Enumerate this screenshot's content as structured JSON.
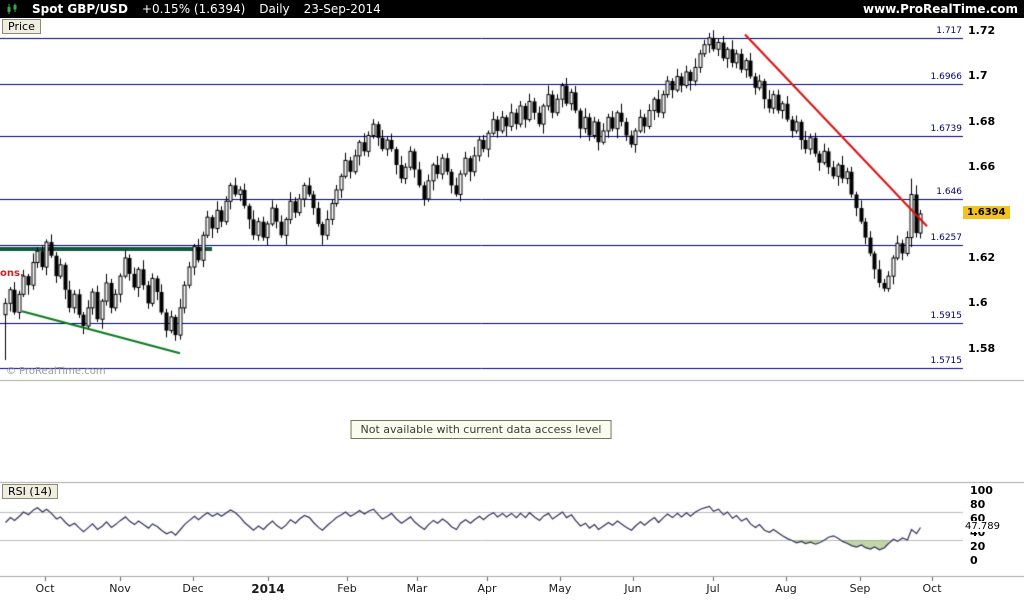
{
  "header": {
    "symbol": "Spot GBP/USD",
    "change": "+0.15% (1.6394)",
    "timeframe": "Daily",
    "date": "23-Sep-2014",
    "website": "www.ProRealTime.com"
  },
  "price_panel": {
    "tab_label": "Price",
    "watermark": "© ProRealTime.com",
    "left_label": "ons."
  },
  "indicator_panel": {
    "message": "Not available with current data access level"
  },
  "rsi_panel": {
    "label": "RSI (14)"
  },
  "price_axis": {
    "ticks": [
      {
        "label": "1.72",
        "value": 1.72
      },
      {
        "label": "1.7",
        "value": 1.7
      },
      {
        "label": "1.68",
        "value": 1.68
      },
      {
        "label": "1.66",
        "value": 1.66
      },
      {
        "label": "1.62",
        "value": 1.62
      },
      {
        "label": "1.6",
        "value": 1.6
      },
      {
        "label": "1.58",
        "value": 1.58
      }
    ],
    "level_labels": [
      {
        "label": "1.717",
        "value": 1.717
      },
      {
        "label": "1.6966",
        "value": 1.6966
      },
      {
        "label": "1.6739",
        "value": 1.6739
      },
      {
        "label": "1.646",
        "value": 1.646
      },
      {
        "label": "1.6257",
        "value": 1.6257
      },
      {
        "label": "1.5915",
        "value": 1.5915
      },
      {
        "label": "1.5715",
        "value": 1.5715
      }
    ],
    "badge": {
      "label": "1.6394",
      "value": 1.6394
    }
  },
  "rsi_axis": {
    "ticks": [
      100,
      80,
      60,
      40,
      20,
      0
    ],
    "value_label": {
      "label": "47.789",
      "value": 47.789
    }
  },
  "x_axis": {
    "labels": [
      {
        "text": "Oct",
        "x": 45,
        "bold": false
      },
      {
        "text": "Nov",
        "x": 120,
        "bold": false
      },
      {
        "text": "Dec",
        "x": 193,
        "bold": false
      },
      {
        "text": "2014",
        "x": 268,
        "bold": true
      },
      {
        "text": "Feb",
        "x": 347,
        "bold": false
      },
      {
        "text": "Mar",
        "x": 417,
        "bold": false
      },
      {
        "text": "Apr",
        "x": 487,
        "bold": false
      },
      {
        "text": "May",
        "x": 560,
        "bold": false
      },
      {
        "text": "Jun",
        "x": 633,
        "bold": false
      },
      {
        "text": "Jul",
        "x": 713,
        "bold": false
      },
      {
        "text": "Aug",
        "x": 786,
        "bold": false
      },
      {
        "text": "Sep",
        "x": 860,
        "bold": false
      },
      {
        "text": "Oct",
        "x": 932,
        "bold": false
      }
    ]
  },
  "colors": {
    "level_line": "#00007f",
    "candle": "#000000",
    "trend_red": "#dd1111",
    "trend_green": "#0a7a1e",
    "support_segment": "#14573f",
    "rsi_line": "#30305a",
    "rsi_fill": "rgba(150,185,110,0.6)",
    "separator": "#a8a8a8",
    "ref_line": "#bbbbbb",
    "badge_bg": "#f2c31c",
    "tick_mark": "#666666"
  },
  "chart_data": [
    {
      "type": "candlestick",
      "name": "Spot GBP/USD",
      "title": "Spot GBP/USD — Daily — 23-Sep-2014",
      "ylim": [
        1.5671,
        1.7249
      ],
      "x_months": [
        "Oct",
        "Nov",
        "Dec",
        "2014",
        "Feb",
        "Mar",
        "Apr",
        "May",
        "Jun",
        "Jul",
        "Aug",
        "Sep",
        "Oct"
      ],
      "open_rule": "previous_close",
      "first_open": 1.595,
      "closes": [
        1.6,
        1.606,
        1.596,
        1.604,
        1.612,
        1.608,
        1.618,
        1.623,
        1.616,
        1.627,
        1.621,
        1.612,
        1.617,
        1.606,
        1.598,
        1.604,
        1.595,
        1.59,
        1.598,
        1.605,
        1.593,
        1.601,
        1.609,
        1.598,
        1.604,
        1.612,
        1.62,
        1.613,
        1.607,
        1.615,
        1.608,
        1.6,
        1.611,
        1.605,
        1.596,
        1.588,
        1.594,
        1.586,
        1.598,
        1.608,
        1.616,
        1.625,
        1.619,
        1.63,
        1.638,
        1.633,
        1.641,
        1.636,
        1.645,
        1.652,
        1.648,
        1.65,
        1.643,
        1.637,
        1.63,
        1.636,
        1.629,
        1.635,
        1.642,
        1.636,
        1.63,
        1.637,
        1.645,
        1.64,
        1.646,
        1.652,
        1.648,
        1.642,
        1.635,
        1.63,
        1.637,
        1.644,
        1.65,
        1.656,
        1.663,
        1.658,
        1.665,
        1.671,
        1.667,
        1.674,
        1.679,
        1.673,
        1.668,
        1.672,
        1.668,
        1.661,
        1.655,
        1.66,
        1.667,
        1.659,
        1.652,
        1.646,
        1.654,
        1.661,
        1.657,
        1.664,
        1.658,
        1.652,
        1.648,
        1.657,
        1.664,
        1.658,
        1.665,
        1.672,
        1.668,
        1.675,
        1.681,
        1.676,
        1.682,
        1.678,
        1.684,
        1.679,
        1.687,
        1.681,
        1.689,
        1.684,
        1.679,
        1.687,
        1.692,
        1.684,
        1.69,
        1.696,
        1.688,
        1.693,
        1.685,
        1.677,
        1.682,
        1.674,
        1.68,
        1.671,
        1.676,
        1.682,
        1.677,
        1.684,
        1.68,
        1.674,
        1.67,
        1.676,
        1.682,
        1.678,
        1.685,
        1.69,
        1.684,
        1.692,
        1.698,
        1.694,
        1.7,
        1.696,
        1.702,
        1.698,
        1.704,
        1.71,
        1.714,
        1.717,
        1.712,
        1.715,
        1.708,
        1.712,
        1.706,
        1.71,
        1.703,
        1.707,
        1.7,
        1.695,
        1.698,
        1.69,
        1.686,
        1.692,
        1.685,
        1.688,
        1.681,
        1.676,
        1.68,
        1.672,
        1.668,
        1.673,
        1.666,
        1.662,
        1.667,
        1.66,
        1.656,
        1.661,
        1.655,
        1.658,
        1.648,
        1.642,
        1.636,
        1.629,
        1.622,
        1.615,
        1.609,
        1.6065,
        1.612,
        1.62,
        1.6265,
        1.622,
        1.629,
        1.648,
        1.631,
        1.6394
      ],
      "wick_high_pattern": [
        0.0022,
        0.0012,
        0.0034,
        0.0016,
        0.0028,
        0.001,
        0.004,
        0.0018
      ],
      "wick_low_pattern": [
        0.0014,
        0.0036,
        0.001,
        0.003,
        0.0012,
        0.0042,
        0.002,
        0.0024
      ],
      "special_wicks": {
        "0": {
          "low": 1.575
        },
        "37": {
          "low": 1.5835
        },
        "153": {
          "high": 1.7192
        },
        "191": {
          "low": 1.6052
        },
        "197": {
          "high": 1.655
        }
      },
      "levels": [
        1.717,
        1.6966,
        1.6739,
        1.646,
        1.6257,
        1.5915,
        1.5715
      ],
      "last_price": 1.6394,
      "trendlines": [
        {
          "color": "red",
          "x1": 745,
          "p1": 1.7185,
          "x2": 927,
          "p2": 1.634
        },
        {
          "color": "green",
          "x1": 22,
          "p1": 1.5965,
          "x2": 180,
          "p2": 1.578
        }
      ],
      "support_segment": {
        "price": 1.624,
        "x1": 0,
        "x2": 212
      }
    },
    {
      "type": "line",
      "name": "RSI (14)",
      "ylim": [
        0,
        100
      ],
      "ref_lines": [
        70,
        30
      ],
      "fill_below": 30,
      "last_value": 47.789,
      "values": [
        55,
        62,
        58,
        64,
        70,
        66,
        73,
        76,
        70,
        74,
        68,
        60,
        63,
        55,
        50,
        54,
        47,
        42,
        48,
        53,
        45,
        50,
        56,
        48,
        52,
        58,
        63,
        57,
        52,
        57,
        52,
        47,
        53,
        49,
        44,
        39,
        42,
        37,
        45,
        52,
        58,
        64,
        59,
        65,
        69,
        64,
        68,
        64,
        69,
        73,
        69,
        62,
        55,
        49,
        44,
        50,
        45,
        51,
        57,
        51,
        46,
        52,
        59,
        54,
        60,
        65,
        62,
        55,
        48,
        44,
        51,
        57,
        62,
        66,
        70,
        64,
        68,
        72,
        67,
        71,
        74,
        66,
        60,
        64,
        68,
        60,
        54,
        58,
        63,
        56,
        50,
        45,
        52,
        58,
        54,
        60,
        55,
        49,
        45,
        54,
        59,
        54,
        59,
        64,
        59,
        65,
        69,
        63,
        68,
        63,
        68,
        62,
        68,
        62,
        69,
        63,
        58,
        64,
        68,
        60,
        65,
        70,
        62,
        66,
        58,
        50,
        54,
        47,
        52,
        45,
        50,
        55,
        51,
        57,
        53,
        48,
        44,
        50,
        56,
        51,
        57,
        62,
        55,
        62,
        67,
        62,
        68,
        63,
        69,
        64,
        70,
        74,
        76,
        78,
        71,
        74,
        66,
        70,
        61,
        65,
        57,
        61,
        53,
        48,
        52,
        44,
        41,
        45,
        40,
        36,
        32,
        29,
        26,
        28,
        25,
        27,
        24,
        26,
        30,
        34,
        36,
        32,
        28,
        25,
        22,
        20,
        23,
        19,
        17,
        20,
        16,
        19,
        25,
        31,
        28,
        33,
        30,
        45,
        39,
        47.789
      ]
    }
  ]
}
